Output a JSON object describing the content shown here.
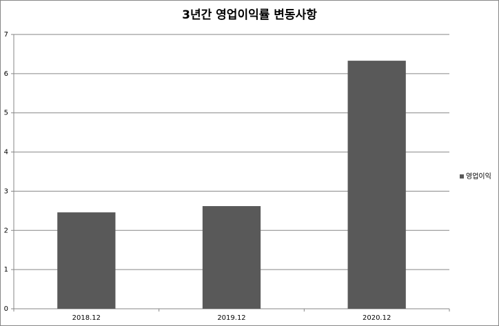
{
  "chart_data": {
    "type": "bar",
    "title": "3년간 영업이익률 변동사항",
    "categories": [
      "2018.12",
      "2019.12",
      "2020.12"
    ],
    "series": [
      {
        "name": "영업이익",
        "color": "#595959",
        "values": [
          2.46,
          2.62,
          6.33
        ]
      }
    ],
    "ylim": [
      0,
      7
    ],
    "yticks": [
      0,
      1,
      2,
      3,
      4,
      5,
      6,
      7
    ],
    "grid": true,
    "legend": "right"
  }
}
